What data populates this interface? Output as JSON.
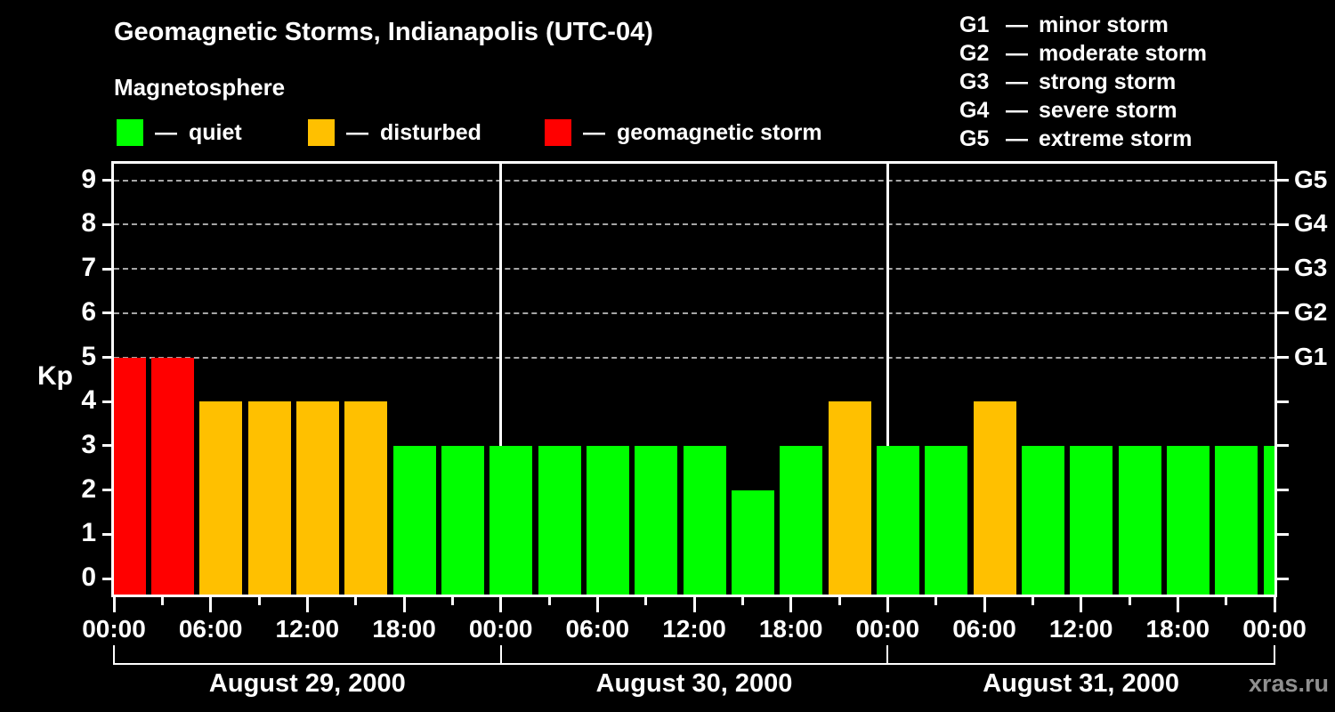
{
  "header": {
    "title": "Geomagnetic Storms, Indianapolis (UTC-04)",
    "subtitle": "Magnetosphere",
    "separator": "—",
    "legend": [
      {
        "key": "quiet",
        "label": "quiet",
        "color": "#00ff00"
      },
      {
        "key": "disturbed",
        "label": "disturbed",
        "color": "#ffc000"
      },
      {
        "key": "storm",
        "label": "geomagnetic storm",
        "color": "#ff0000"
      }
    ],
    "g_legend": [
      {
        "code": "G1",
        "label": "minor storm"
      },
      {
        "code": "G2",
        "label": "moderate storm"
      },
      {
        "code": "G3",
        "label": "strong storm"
      },
      {
        "code": "G4",
        "label": "severe storm"
      },
      {
        "code": "G5",
        "label": "extreme storm"
      }
    ]
  },
  "watermark": "xras.ru",
  "chart_data": {
    "type": "bar",
    "ylabel": "Kp",
    "ylim": [
      0,
      9
    ],
    "yticks": [
      0,
      1,
      2,
      3,
      4,
      5,
      6,
      7,
      8,
      9
    ],
    "interval_hours": 3,
    "x_tick_labels": [
      "00:00",
      "06:00",
      "12:00",
      "18:00",
      "00:00",
      "06:00",
      "12:00",
      "18:00",
      "00:00",
      "06:00",
      "12:00",
      "18:00",
      "00:00"
    ],
    "g_levels": [
      {
        "kp": 5,
        "label": "G1"
      },
      {
        "kp": 6,
        "label": "G2"
      },
      {
        "kp": 7,
        "label": "G3"
      },
      {
        "kp": 8,
        "label": "G4"
      },
      {
        "kp": 9,
        "label": "G5"
      }
    ],
    "gridlines_kp": [
      5,
      6,
      7,
      8,
      9
    ],
    "days": [
      {
        "date": "August 29, 2000",
        "kp": [
          5,
          5,
          4,
          4,
          4,
          4,
          3,
          3
        ]
      },
      {
        "date": "August 30, 2000",
        "kp": [
          3,
          3,
          3,
          3,
          3,
          2,
          3,
          4
        ]
      },
      {
        "date": "August 31, 2000",
        "kp": [
          3,
          3,
          4,
          3,
          3,
          3,
          3,
          3
        ]
      }
    ],
    "next_day_partial_kp": 3,
    "colors": {
      "quiet": "#00ff00",
      "disturbed": "#ffc000",
      "storm": "#ff0000"
    },
    "color_thresholds": {
      "quiet_max_kp": 3,
      "disturbed_kp": 4,
      "storm_min_kp": 5
    },
    "grid": "dashed horizontal lines at G1–G5 levels",
    "legend_position": "top"
  }
}
